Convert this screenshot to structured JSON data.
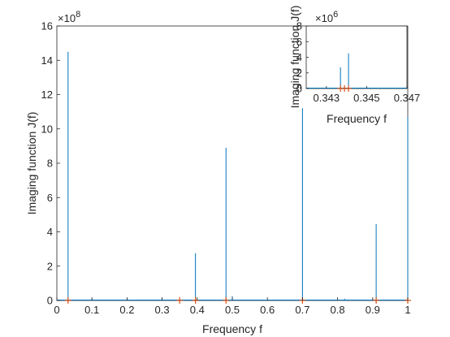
{
  "chart_data": [
    {
      "id": "main",
      "type": "line",
      "xlabel": "Frequency f",
      "ylabel": "Imaging function J(f)",
      "exponent": "10",
      "exponent_power": "8",
      "xlim": [
        0,
        1
      ],
      "ylim": [
        0,
        16
      ],
      "y_scale": 100000000,
      "x_ticks": [
        0,
        0.1,
        0.2,
        0.3,
        0.4,
        0.5,
        0.6,
        0.7,
        0.8,
        0.9,
        1
      ],
      "x_tick_labels": [
        "0",
        "0.1",
        "0.2",
        "0.3",
        "0.4",
        "0.5",
        "0.6",
        "0.7",
        "0.8",
        "0.9",
        "1"
      ],
      "y_ticks": [
        0,
        2,
        4,
        6,
        8,
        10,
        12,
        14,
        16
      ],
      "y_tick_labels": [
        "0",
        "2",
        "4",
        "6",
        "8",
        "10",
        "12",
        "14",
        "16"
      ],
      "grid": false,
      "series": [
        {
          "color": "#0072BD",
          "peaks": [
            {
              "x": 0.032,
              "y": 14.5
            },
            {
              "x": 0.1,
              "y": 0.1
            },
            {
              "x": 0.2,
              "y": 0.1
            },
            {
              "x": 0.3,
              "y": 0.1
            },
            {
              "x": 0.395,
              "y": 2.75
            },
            {
              "x": 0.482,
              "y": 8.9
            },
            {
              "x": 0.5,
              "y": 0.25
            },
            {
              "x": 0.7,
              "y": 11.2
            },
            {
              "x": 0.82,
              "y": 0.1
            },
            {
              "x": 0.91,
              "y": 4.45
            },
            {
              "x": 1.0,
              "y": 10.7
            }
          ]
        }
      ],
      "markers": {
        "color": "#D95319",
        "symbol": "+",
        "x": [
          0.032,
          0.35,
          0.395,
          0.482,
          0.7,
          0.91,
          1.0
        ]
      }
    },
    {
      "id": "inset",
      "type": "line",
      "xlabel": "Frequency f",
      "ylabel": "Imaging function J(f)",
      "exponent": "10",
      "exponent_power": "6",
      "xlim": [
        0.342,
        0.347
      ],
      "ylim": [
        0,
        8
      ],
      "y_scale": 1000000,
      "x_ticks": [
        0.343,
        0.345,
        0.347
      ],
      "x_tick_labels": [
        "0.343",
        "0.345",
        "0.347"
      ],
      "y_ticks": [
        0,
        2,
        4,
        6,
        8
      ],
      "y_tick_labels": [
        "0",
        "2",
        "4",
        "6",
        "8"
      ],
      "grid": false,
      "series": [
        {
          "color": "#0072BD",
          "peaks": [
            {
              "x": 0.3437,
              "y": 2.7
            },
            {
              "x": 0.3441,
              "y": 4.5
            }
          ]
        }
      ],
      "markers": {
        "color": "#D95319",
        "symbol": "+",
        "x": [
          0.3437,
          0.3439,
          0.3441
        ]
      }
    }
  ]
}
